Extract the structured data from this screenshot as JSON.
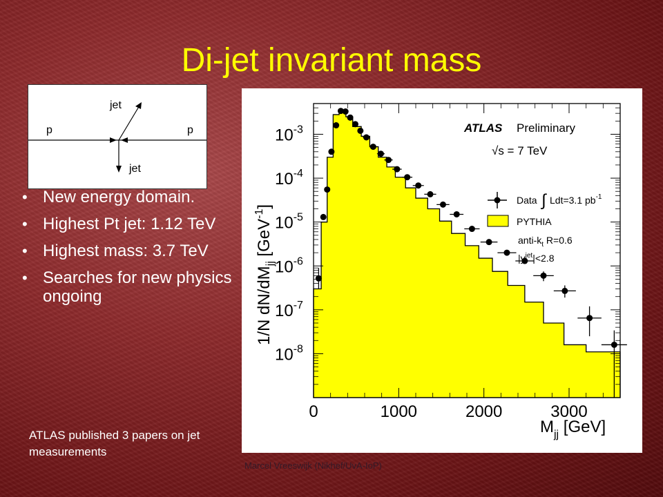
{
  "slide": {
    "title": "Di-jet invariant mass",
    "bullets": [
      "New energy domain.",
      "Highest Pt jet: 1.12 TeV",
      "Highest mass: 3.7 TeV",
      "Searches for new physics ongoing"
    ],
    "note": "ATLAS published 3 papers on jet measurements",
    "footer": "Marcel Vreeswijk (Nikhef/UvA-IoP)"
  },
  "diagram": {
    "label_jet_top": "jet",
    "label_jet_bottom": "jet",
    "label_p_left": "p",
    "label_p_right": "p"
  },
  "colors": {
    "title": "#ffff00",
    "fill": "#ffff00",
    "background": "#8d2a2c"
  },
  "chart_data": {
    "type": "area",
    "log_y": true,
    "xlim": [
      0,
      3600
    ],
    "ylim_exponents": [
      -9,
      -2.3
    ],
    "x_ticks": [
      {
        "value": 0,
        "label": "0"
      },
      {
        "value": 1000,
        "label": "1000"
      },
      {
        "value": 2000,
        "label": "2000"
      },
      {
        "value": 3000,
        "label": "3000"
      }
    ],
    "y_ticks": [
      {
        "exp": -3,
        "base": "10",
        "sup": "-3"
      },
      {
        "exp": -4,
        "base": "10",
        "sup": "-4"
      },
      {
        "exp": -5,
        "base": "10",
        "sup": "-5"
      },
      {
        "exp": -6,
        "base": "10",
        "sup": "-6"
      },
      {
        "exp": -7,
        "base": "10",
        "sup": "-7"
      },
      {
        "exp": -8,
        "base": "10",
        "sup": "-8"
      }
    ],
    "xlabel": {
      "main": "M",
      "sub": "jj",
      "unit": " [GeV]"
    },
    "ylabel": {
      "a": "1/N dN/dM",
      "sub": "jj",
      "b": " [GeV",
      "sup": "-1",
      "c": "]"
    },
    "annotations": {
      "atlas": "ATLAS",
      "preliminary": "Preliminary",
      "energy": "√s = 7 TeV",
      "algo_a": "anti-k",
      "algo_sub": "t",
      "algo_b": " R=0.6",
      "rap_a": "|y",
      "rap_sup": "jet",
      "rap_b": "|<2.8"
    },
    "legend": {
      "placement": "right",
      "data_label": "Data",
      "lumi_label": "Ldt=3.1 pb",
      "lumi_sup": "-1",
      "mc_label": "PYTHIA"
    },
    "pythia_hist": {
      "edges": [
        0,
        90,
        160,
        230,
        300,
        380,
        460,
        560,
        660,
        760,
        860,
        960,
        1080,
        1200,
        1340,
        1480,
        1620,
        1780,
        1940,
        2100,
        2280,
        2480,
        2700,
        2940,
        3200,
        3600
      ],
      "values": [
        3e-07,
        1e-05,
        0.0003,
        0.0028,
        0.0036,
        0.0025,
        0.0015,
        0.0009,
        0.00052,
        0.0003,
        0.00018,
        0.000105,
        6e-05,
        3.5e-05,
        2e-05,
        1.05e-05,
        5.5e-06,
        2.9e-06,
        1.5e-06,
        7.5e-07,
        3.6e-07,
        1.5e-07,
        5e-08,
        1.6e-08,
        1.1e-08
      ]
    },
    "data_points": [
      {
        "x": 60,
        "y": 5.2e-07,
        "ylo": 3e-07,
        "yhi": 9e-07,
        "xerr": 20
      },
      {
        "x": 115,
        "y": 1.3e-05,
        "xerr": 25
      },
      {
        "x": 160,
        "y": 5.5e-05,
        "xerr": 25
      },
      {
        "x": 210,
        "y": 0.0004,
        "xerr": 25
      },
      {
        "x": 265,
        "y": 0.0016,
        "xerr": 30
      },
      {
        "x": 320,
        "y": 0.0034,
        "xerr": 30
      },
      {
        "x": 375,
        "y": 0.0033,
        "xerr": 30
      },
      {
        "x": 430,
        "y": 0.0024,
        "xerr": 30
      },
      {
        "x": 490,
        "y": 0.0017,
        "xerr": 35
      },
      {
        "x": 550,
        "y": 0.0012,
        "xerr": 35
      },
      {
        "x": 620,
        "y": 0.00085,
        "xerr": 40
      },
      {
        "x": 700,
        "y": 0.00052,
        "xerr": 40
      },
      {
        "x": 790,
        "y": 0.00036,
        "xerr": 45
      },
      {
        "x": 880,
        "y": 0.00026,
        "xerr": 50
      },
      {
        "x": 980,
        "y": 0.00016,
        "xerr": 55
      },
      {
        "x": 1100,
        "y": 0.000105,
        "xerr": 60
      },
      {
        "x": 1230,
        "y": 6.8e-05,
        "xerr": 65
      },
      {
        "x": 1370,
        "y": 4.3e-05,
        "xerr": 70
      },
      {
        "x": 1520,
        "y": 2.5e-05,
        "xerr": 75
      },
      {
        "x": 1680,
        "y": 1.5e-05,
        "xerr": 80
      },
      {
        "x": 1860,
        "y": 7e-06,
        "xerr": 90
      },
      {
        "x": 2060,
        "y": 3.5e-06,
        "xerr": 100
      },
      {
        "x": 2270,
        "y": 2e-06,
        "xerr": 110
      },
      {
        "x": 2480,
        "y": 1.3e-06,
        "xerr": 110
      },
      {
        "x": 2700,
        "y": 6e-07,
        "xerr": 120,
        "ylo": 4.5e-07,
        "yhi": 7.5e-07
      },
      {
        "x": 2950,
        "y": 2.7e-07,
        "xerr": 130,
        "ylo": 1.9e-07,
        "yhi": 3.6e-07
      },
      {
        "x": 3240,
        "y": 6.5e-08,
        "xerr": 140,
        "ylo": 2.5e-08,
        "yhi": 1.2e-07
      },
      {
        "x": 3530,
        "y": 1.6e-08,
        "xerr": 150,
        "ylo": 1e-09,
        "yhi": 3.4e-08
      }
    ]
  }
}
